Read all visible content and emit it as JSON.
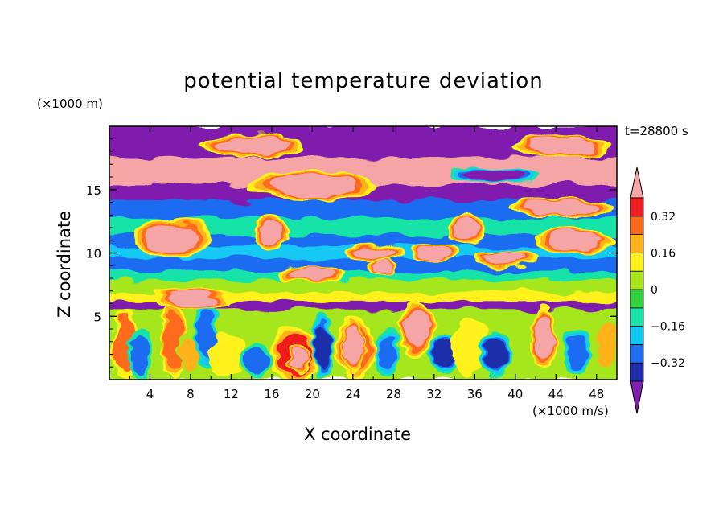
{
  "chart_data": {
    "type": "heatmap",
    "title": "potential temperature deviation",
    "xlabel": "X coordinate",
    "ylabel": "Z coordinate",
    "x_unit": "(×1000 m/s)",
    "y_unit": "(×1000 m)",
    "time_label": "t=28800 s",
    "xlim": [
      0,
      50
    ],
    "ylim": [
      0,
      20
    ],
    "x_ticks": [
      4,
      8,
      12,
      16,
      20,
      24,
      28,
      32,
      36,
      40,
      44,
      48
    ],
    "y_ticks": [
      5,
      10,
      15
    ],
    "colorbar": {
      "tick_labels": [
        "0.32",
        "0.16",
        "0",
        "−0.16",
        "−0.32"
      ],
      "tick_values": [
        0.32,
        0.16,
        0,
        -0.16,
        -0.32
      ],
      "levels": [
        -0.4,
        -0.32,
        -0.24,
        -0.16,
        -0.08,
        0,
        0.08,
        0.16,
        0.24,
        0.32,
        0.4
      ],
      "colors": [
        "#7f1fae",
        "#1f2daa",
        "#1e6cf2",
        "#12c8f4",
        "#19e3a8",
        "#31d33a",
        "#a6e61a",
        "#fff21a",
        "#ffb21a",
        "#ff6a1a",
        "#f01e1e",
        "#f5a5a5"
      ],
      "extend": "both"
    },
    "bands": [
      {
        "z": [
          0,
          1.2
        ],
        "value": 0.0
      },
      {
        "z": [
          1.2,
          5.6
        ],
        "value": 0.0
      },
      {
        "z": [
          5.6,
          6.2
        ],
        "value": -0.45
      },
      {
        "z": [
          6.2,
          6.9
        ],
        "value": 0.1
      },
      {
        "z": [
          6.9,
          7.9
        ],
        "value": 0.0
      },
      {
        "z": [
          7.9,
          8.6
        ],
        "value": -0.1
      },
      {
        "z": [
          8.6,
          9.6
        ],
        "value": -0.28
      },
      {
        "z": [
          9.6,
          10.6
        ],
        "value": -0.2
      },
      {
        "z": [
          10.6,
          11.4
        ],
        "value": -0.28
      },
      {
        "z": [
          11.4,
          12.8
        ],
        "value": -0.12
      },
      {
        "z": [
          12.8,
          14.2
        ],
        "value": -0.28
      },
      {
        "z": [
          14.2,
          15.4
        ],
        "value": -0.45
      },
      {
        "z": [
          15.4,
          17.6
        ],
        "value": 0.45
      },
      {
        "z": [
          17.6,
          18.8
        ],
        "value": -0.45
      },
      {
        "z": [
          18.8,
          20
        ],
        "value": -0.45
      }
    ],
    "features": [
      {
        "x": 1.6,
        "z": 2.8,
        "rx": 0.9,
        "rz": 2.6,
        "value": 0.24
      },
      {
        "x": 3.0,
        "z": 2.0,
        "rx": 0.8,
        "rz": 2.0,
        "value": -0.28
      },
      {
        "x": 6.3,
        "z": 3.2,
        "rx": 0.9,
        "rz": 3.0,
        "value": 0.3
      },
      {
        "x": 7.9,
        "z": 2.0,
        "rx": 0.8,
        "rz": 1.7,
        "value": 0.16
      },
      {
        "x": 9.6,
        "z": 3.6,
        "rx": 0.9,
        "rz": 2.4,
        "value": -0.32
      },
      {
        "x": 11.5,
        "z": 2.0,
        "rx": 1.4,
        "rz": 1.5,
        "value": 0.08
      },
      {
        "x": 14.6,
        "z": 1.5,
        "rx": 1.1,
        "rz": 1.3,
        "value": -0.28
      },
      {
        "x": 18.2,
        "z": 2.0,
        "rx": 2.0,
        "rz": 2.0,
        "value": 0.34
      },
      {
        "x": 18.6,
        "z": 1.8,
        "rx": 0.8,
        "rz": 1.0,
        "value": 0.45
      },
      {
        "x": 21.0,
        "z": 2.6,
        "rx": 0.7,
        "rz": 2.4,
        "value": -0.36
      },
      {
        "x": 24.2,
        "z": 2.5,
        "rx": 1.7,
        "rz": 2.4,
        "value": 0.3
      },
      {
        "x": 24.0,
        "z": 2.7,
        "rx": 0.8,
        "rz": 2.1,
        "value": 0.45
      },
      {
        "x": 27.3,
        "z": 2.0,
        "rx": 1.0,
        "rz": 1.6,
        "value": -0.3
      },
      {
        "x": 30.2,
        "z": 4.0,
        "rx": 1.5,
        "rz": 2.0,
        "value": 0.45
      },
      {
        "x": 33.0,
        "z": 2.0,
        "rx": 1.2,
        "rz": 1.4,
        "value": -0.36
      },
      {
        "x": 35.6,
        "z": 2.6,
        "rx": 1.6,
        "rz": 2.0,
        "value": 0.1
      },
      {
        "x": 38.0,
        "z": 2.0,
        "rx": 1.3,
        "rz": 1.6,
        "value": -0.4
      },
      {
        "x": 42.8,
        "z": 3.4,
        "rx": 1.0,
        "rz": 2.3,
        "value": 0.45
      },
      {
        "x": 46.0,
        "z": 2.2,
        "rx": 1.1,
        "rz": 1.6,
        "value": -0.3
      },
      {
        "x": 49.0,
        "z": 2.8,
        "rx": 0.8,
        "rz": 2.0,
        "value": 0.2
      },
      {
        "x": 8.2,
        "z": 6.3,
        "rx": 3.6,
        "rz": 0.55,
        "value": 0.45
      },
      {
        "x": 19.8,
        "z": 8.3,
        "rx": 3.0,
        "rz": 0.5,
        "value": 0.45
      },
      {
        "x": 27.0,
        "z": 8.8,
        "rx": 1.2,
        "rz": 0.45,
        "value": 0.45
      },
      {
        "x": 32.0,
        "z": 10.0,
        "rx": 2.0,
        "rz": 0.5,
        "value": 0.45
      },
      {
        "x": 39.0,
        "z": 9.6,
        "rx": 3.0,
        "rz": 0.55,
        "value": 0.45
      },
      {
        "x": 46.0,
        "z": 11.0,
        "rx": 3.5,
        "rz": 0.8,
        "value": 0.45
      },
      {
        "x": 26.0,
        "z": 10.0,
        "rx": 2.5,
        "rz": 0.6,
        "value": 0.45
      },
      {
        "x": 6.2,
        "z": 11.2,
        "rx": 3.4,
        "rz": 1.4,
        "value": 0.45
      },
      {
        "x": 16.0,
        "z": 11.5,
        "rx": 1.4,
        "rz": 1.2,
        "value": 0.45
      },
      {
        "x": 35.2,
        "z": 11.8,
        "rx": 1.6,
        "rz": 1.0,
        "value": 0.45
      },
      {
        "x": 44.5,
        "z": 13.6,
        "rx": 5.0,
        "rz": 0.6,
        "value": 0.45
      },
      {
        "x": 20.0,
        "z": 15.3,
        "rx": 6.0,
        "rz": 1.0,
        "value": 0.45
      },
      {
        "x": 38.0,
        "z": 16.2,
        "rx": 4.0,
        "rz": 0.5,
        "value": -0.45
      },
      {
        "x": 44.5,
        "z": 18.4,
        "rx": 4.5,
        "rz": 0.7,
        "value": 0.45
      },
      {
        "x": 14.0,
        "z": 18.5,
        "rx": 5.0,
        "rz": 0.7,
        "value": 0.45
      }
    ]
  }
}
